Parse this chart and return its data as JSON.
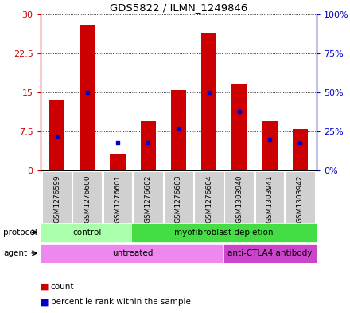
{
  "title": "GDS5822 / ILMN_1249846",
  "samples": [
    "GSM1276599",
    "GSM1276600",
    "GSM1276601",
    "GSM1276602",
    "GSM1276603",
    "GSM1276604",
    "GSM1303940",
    "GSM1303941",
    "GSM1303942"
  ],
  "counts": [
    13.5,
    28.0,
    3.3,
    9.5,
    15.5,
    26.5,
    16.5,
    9.5,
    8.0
  ],
  "percentiles": [
    22,
    50,
    18,
    18,
    27,
    50,
    38,
    20,
    18
  ],
  "ylim_left": [
    0,
    30
  ],
  "ylim_right": [
    0,
    100
  ],
  "yticks_left": [
    0,
    7.5,
    15,
    22.5,
    30
  ],
  "yticks_right": [
    0,
    25,
    50,
    75,
    100
  ],
  "ytick_labels_left": [
    "0",
    "7.5",
    "15",
    "22.5",
    "30"
  ],
  "ytick_labels_right": [
    "0%",
    "25%",
    "50%",
    "75%",
    "100%"
  ],
  "bar_color": "#cc0000",
  "dot_color": "#0000cc",
  "protocol_groups": [
    {
      "label": "control",
      "start": 0,
      "end": 3,
      "color": "#aaffaa"
    },
    {
      "label": "myofibroblast depletion",
      "start": 3,
      "end": 9,
      "color": "#44dd44"
    }
  ],
  "agent_groups": [
    {
      "label": "untreated",
      "start": 0,
      "end": 6,
      "color": "#ee88ee"
    },
    {
      "label": "anti-CTLA4 antibody",
      "start": 6,
      "end": 9,
      "color": "#cc44cc"
    }
  ],
  "bar_width": 0.5,
  "grid_color": "black",
  "label_bg": "#d0d0d0",
  "plot_bg": "white"
}
